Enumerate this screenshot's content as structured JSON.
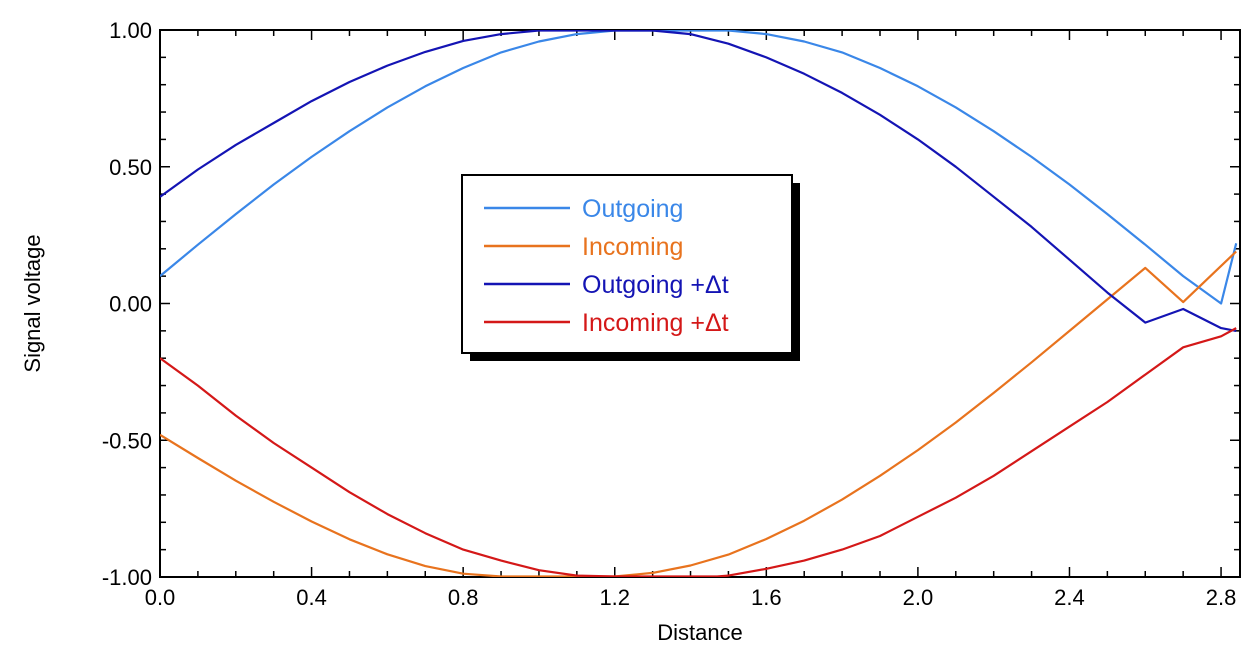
{
  "chart_data": {
    "type": "line",
    "xlabel": "Distance",
    "ylabel": "Signal voltage",
    "xlim": [
      0.0,
      2.85
    ],
    "ylim": [
      -1.0,
      1.0
    ],
    "x_ticks": [
      "0.0",
      "0.4",
      "0.8",
      "1.2",
      "1.6",
      "2.0",
      "2.4",
      "2.8"
    ],
    "x_tick_values": [
      0.0,
      0.4,
      0.8,
      1.2,
      1.6,
      2.0,
      2.4,
      2.8
    ],
    "y_ticks": [
      "1.00",
      "0.50",
      "0.00",
      "-0.50",
      "-1.00"
    ],
    "y_tick_values": [
      1.0,
      0.5,
      0.0,
      -0.5,
      -1.0
    ],
    "grid": false,
    "legend_position": "center-left",
    "series": [
      {
        "name": "Outgoing",
        "color": "#3a87e8",
        "x": [
          0.0,
          0.1,
          0.2,
          0.3,
          0.4,
          0.5,
          0.6,
          0.7,
          0.8,
          0.9,
          1.0,
          1.1,
          1.2,
          1.3,
          1.4,
          1.5,
          1.6,
          1.7,
          1.8,
          1.9,
          2.0,
          2.1,
          2.2,
          2.3,
          2.4,
          2.5,
          2.6,
          2.7,
          2.8,
          2.84
        ],
        "values": [
          0.1,
          0.215,
          0.327,
          0.435,
          0.536,
          0.63,
          0.717,
          0.794,
          0.861,
          0.918,
          0.958,
          0.985,
          0.998,
          0.998,
          0.998,
          0.998,
          0.985,
          0.958,
          0.918,
          0.861,
          0.794,
          0.717,
          0.63,
          0.536,
          0.435,
          0.327,
          0.215,
          0.1,
          0.0,
          0.22
        ]
      },
      {
        "name": "Incoming",
        "color": "#e8731e",
        "x": [
          0.0,
          0.1,
          0.2,
          0.3,
          0.4,
          0.5,
          0.6,
          0.7,
          0.8,
          0.9,
          0.95,
          1.2,
          1.3,
          1.4,
          1.5,
          1.6,
          1.7,
          1.8,
          1.9,
          2.0,
          2.1,
          2.2,
          2.3,
          2.4,
          2.5,
          2.6,
          2.7,
          2.84
        ],
        "values": [
          -0.48,
          -0.565,
          -0.648,
          -0.725,
          -0.797,
          -0.862,
          -0.917,
          -0.96,
          -0.988,
          -0.998,
          -0.998,
          -0.998,
          -0.985,
          -0.958,
          -0.918,
          -0.861,
          -0.794,
          -0.717,
          -0.63,
          -0.536,
          -0.435,
          -0.327,
          -0.215,
          -0.1,
          0.015,
          0.13,
          0.005,
          0.19
        ]
      },
      {
        "name": "Outgoing +Δt",
        "color": "#1414b4",
        "x": [
          0.0,
          0.1,
          0.2,
          0.3,
          0.4,
          0.5,
          0.6,
          0.7,
          0.8,
          0.9,
          1.0,
          1.1,
          1.2,
          1.3,
          1.4,
          1.5,
          1.6,
          1.7,
          1.8,
          1.9,
          2.0,
          2.1,
          2.2,
          2.3,
          2.4,
          2.5,
          2.6,
          2.7,
          2.8,
          2.84
        ],
        "values": [
          0.39,
          0.49,
          0.58,
          0.66,
          0.74,
          0.81,
          0.87,
          0.92,
          0.96,
          0.985,
          0.998,
          0.998,
          0.998,
          0.998,
          0.985,
          0.95,
          0.9,
          0.84,
          0.77,
          0.69,
          0.6,
          0.5,
          0.39,
          0.28,
          0.16,
          0.04,
          -0.07,
          -0.02,
          -0.09,
          -0.1
        ]
      },
      {
        "name": "Incoming +Δt",
        "color": "#d41818",
        "x": [
          0.0,
          0.1,
          0.2,
          0.3,
          0.4,
          0.5,
          0.6,
          0.7,
          0.8,
          0.9,
          1.0,
          1.1,
          1.2,
          1.25,
          1.3,
          1.47,
          1.5,
          1.6,
          1.7,
          1.8,
          1.9,
          2.0,
          2.1,
          2.2,
          2.3,
          2.4,
          2.5,
          2.6,
          2.7,
          2.8,
          2.84
        ],
        "values": [
          -0.2,
          -0.3,
          -0.41,
          -0.51,
          -0.6,
          -0.69,
          -0.77,
          -0.84,
          -0.9,
          -0.94,
          -0.975,
          -0.995,
          -0.998,
          -0.998,
          -0.998,
          -0.998,
          -0.995,
          -0.97,
          -0.94,
          -0.9,
          -0.85,
          -0.78,
          -0.71,
          -0.63,
          -0.54,
          -0.45,
          -0.36,
          -0.26,
          -0.16,
          -0.12,
          -0.09
        ]
      }
    ]
  }
}
